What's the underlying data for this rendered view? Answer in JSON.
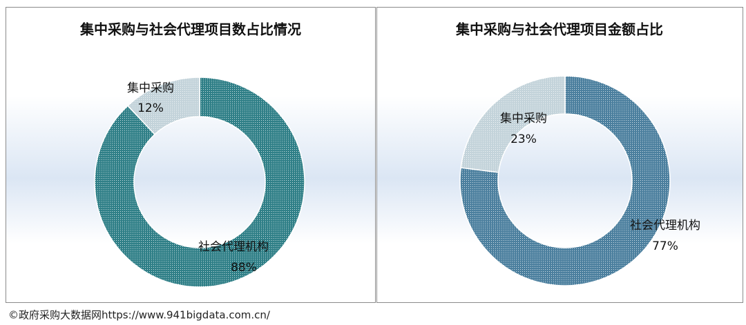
{
  "chart_data": [
    {
      "type": "donut",
      "title": "集中采购与社会代理项目数占比情况",
      "categories": [
        "社会代理机构",
        "集中采购"
      ],
      "values": [
        88,
        12
      ],
      "value_labels": [
        "88%",
        "12%"
      ],
      "colors": [
        "#2f7f87",
        "#c3d3da"
      ]
    },
    {
      "type": "donut",
      "title": "集中采购与社会代理项目金额占比",
      "categories": [
        "社会代理机构",
        "集中采购"
      ],
      "values": [
        77,
        23
      ],
      "value_labels": [
        "77%",
        "23%"
      ],
      "colors": [
        "#4b7f9e",
        "#c3d3da"
      ]
    }
  ],
  "source": "©政府采购大数据网https://www.941bigdata.com.cn/"
}
